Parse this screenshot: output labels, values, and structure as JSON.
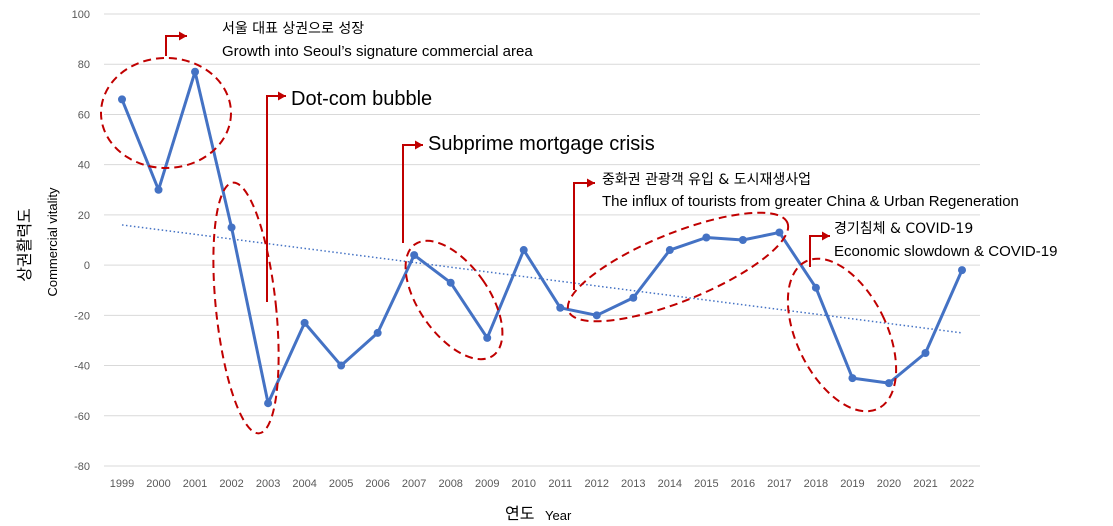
{
  "chart_data": {
    "type": "line",
    "title": "",
    "x": [
      1999,
      2000,
      2001,
      2002,
      2003,
      2004,
      2005,
      2006,
      2007,
      2008,
      2009,
      2010,
      2011,
      2012,
      2013,
      2014,
      2015,
      2016,
      2017,
      2018,
      2019,
      2020,
      2021,
      2022
    ],
    "x_tick_labels": [
      "1999",
      "2000",
      "2001",
      "2002",
      "2003",
      "2004",
      "2005",
      "2006",
      "2007",
      "2008",
      "2009",
      "2010",
      "2011",
      "2012",
      "2013",
      "2014",
      "2015",
      "2016",
      "2017",
      "2018",
      "2019",
      "2020",
      "2021",
      "2022"
    ],
    "series": [
      {
        "name": "Commercial vitality",
        "color": "#4472C4",
        "values": [
          66,
          30,
          77,
          15,
          -55,
          -23,
          -40,
          -27,
          4,
          -7,
          -29,
          6,
          -17,
          -20,
          -13,
          6,
          11,
          10,
          13,
          -9,
          -45,
          -47,
          -35,
          -2
        ]
      }
    ],
    "trendline": {
      "style": "dotted",
      "color": "#4472C4",
      "start": {
        "x": 1999,
        "y": 16
      },
      "end": {
        "x": 2022,
        "y": -27
      }
    },
    "ylim": [
      -80,
      100
    ],
    "y_ticks": [
      100,
      80,
      60,
      40,
      20,
      0,
      -20,
      -40,
      -60,
      -80
    ],
    "y_tick_labels": [
      "100",
      "80",
      "60",
      "40",
      "20",
      "0",
      "-20",
      "-40",
      "-60",
      "-80"
    ],
    "grid": true,
    "xlabel_ko": "연도",
    "xlabel_en": "Year",
    "ylabel_ko": "상권활력도",
    "ylabel_en": "Commercial vitality",
    "annotation_color": "#C00000",
    "annotations": [
      {
        "id": "seoul",
        "line1": "서울 대표 상권으로 성장",
        "line2": "Growth into Seoul’s signature commercial area"
      },
      {
        "id": "dotcom",
        "line1": "Dot-com bubble"
      },
      {
        "id": "subprime",
        "line1": "Subprime mortgage crisis"
      },
      {
        "id": "china",
        "line1": "중화권 관광객 유입 & 도시재생사업",
        "line2": "The influx of tourists from greater China & Urban Regeneration"
      },
      {
        "id": "covid",
        "line1": "경기침체 & COVID-19",
        "line2": "Economic slowdown & COVID-19"
      }
    ]
  }
}
